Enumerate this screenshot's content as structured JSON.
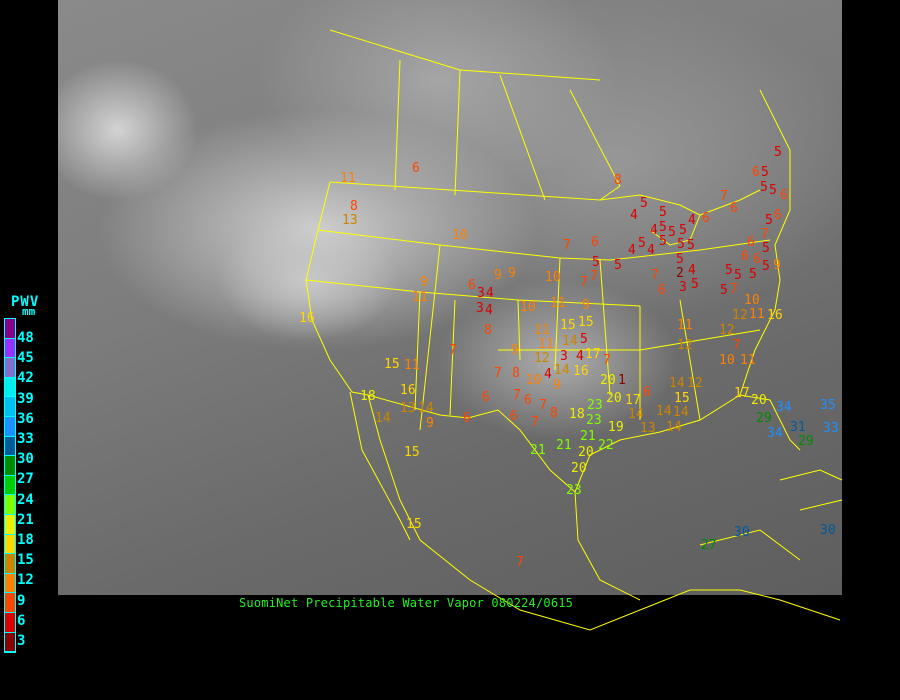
{
  "caption": "SuomiNet Precipitable Water Vapor 080224/0615",
  "legend": {
    "title": "PWV",
    "unit": "mm",
    "labels": [
      "48",
      "45",
      "42",
      "39",
      "36",
      "33",
      "30",
      "27",
      "24",
      "21",
      "18",
      "15",
      "12",
      "9",
      "6",
      "3"
    ],
    "colors": [
      "#8b008b",
      "#9b30ff",
      "#8470cc",
      "#00eeee",
      "#00bfee",
      "#1e90ff",
      "#005a9c",
      "#008b00",
      "#00cd00",
      "#7fff00",
      "#eeee00",
      "#ffd700",
      "#cd8500",
      "#ff8000",
      "#ff4500",
      "#dd0000",
      "#8b0000"
    ]
  },
  "map": {
    "boundary_color": "#ffff00",
    "background": "infrared satellite imagery, grayscale"
  },
  "stations": [
    11,
    8,
    13,
    6,
    10,
    9,
    11,
    16,
    18,
    15,
    11,
    16,
    13,
    14,
    14,
    9,
    6,
    15,
    15,
    7,
    6,
    3,
    4,
    3,
    4,
    8,
    9,
    9,
    7,
    10,
    7,
    10,
    11,
    9,
    11,
    15,
    15,
    14,
    5,
    11,
    3,
    4,
    12,
    4,
    14,
    16,
    17,
    7,
    20,
    1,
    9,
    8,
    10,
    9,
    7,
    6,
    7,
    6,
    7,
    8,
    6,
    7,
    18,
    23,
    23,
    21,
    19,
    21,
    21,
    20,
    22,
    20,
    23,
    20,
    17,
    14,
    13,
    14,
    15,
    14,
    12,
    6,
    14,
    14,
    17,
    20,
    29,
    34,
    34,
    31,
    29,
    35,
    33,
    10,
    11,
    12,
    11,
    12,
    12,
    10,
    11,
    16,
    7,
    8,
    5,
    4,
    5,
    5,
    4,
    4,
    5,
    5,
    5,
    5,
    5,
    5,
    4,
    5,
    4,
    6,
    5,
    5,
    7,
    7,
    6,
    2,
    4,
    3,
    5,
    6,
    7,
    6,
    5,
    6,
    5,
    5,
    5,
    6,
    5,
    6,
    5,
    6,
    6,
    6,
    5,
    7,
    5,
    9,
    5,
    5,
    7,
    5,
    30,
    27,
    30,
    7
  ]
}
